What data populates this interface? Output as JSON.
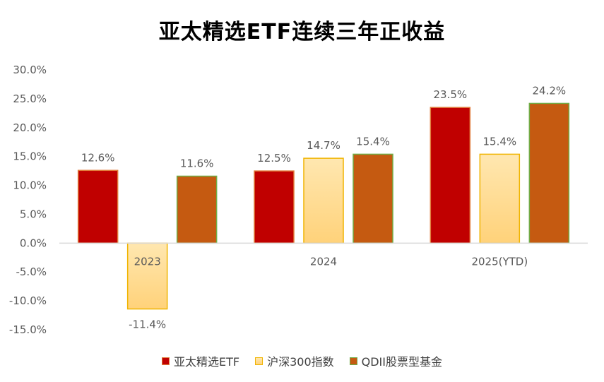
{
  "chart_data": {
    "type": "bar",
    "title": "亚太精选ETF连续三年正收益",
    "categories": [
      "2023",
      "2024",
      "2025(YTD)"
    ],
    "series": [
      {
        "name": "亚太精选ETF",
        "values": [
          12.6,
          12.5,
          23.5
        ],
        "labels": [
          "12.6%",
          "12.5%",
          "23.5%"
        ],
        "color": "#C00000",
        "border": "#E07B39"
      },
      {
        "name": "沪深300指数",
        "values": [
          -11.4,
          14.7,
          15.4
        ],
        "labels": [
          "-11.4%",
          "14.7%",
          "15.4%"
        ],
        "color": "#FFD98A",
        "border": "#F0B400"
      },
      {
        "name": "QDII股票型基金",
        "values": [
          11.6,
          15.4,
          24.2
        ],
        "labels": [
          "11.6%",
          "15.4%",
          "24.2%"
        ],
        "color": "#C55A11",
        "border": "#70AD47"
      }
    ],
    "ylim": [
      -15,
      30
    ],
    "yticks": [
      30,
      25,
      20,
      15,
      10,
      5,
      0,
      -5,
      -10,
      -15
    ],
    "ytick_labels": [
      "30.0%",
      "25.0%",
      "20.0%",
      "15.0%",
      "10.0%",
      "5.0%",
      "0.0%",
      "-5.0%",
      "-10.0%",
      "-15.0%"
    ],
    "grid": false,
    "legend_position": "bottom"
  }
}
